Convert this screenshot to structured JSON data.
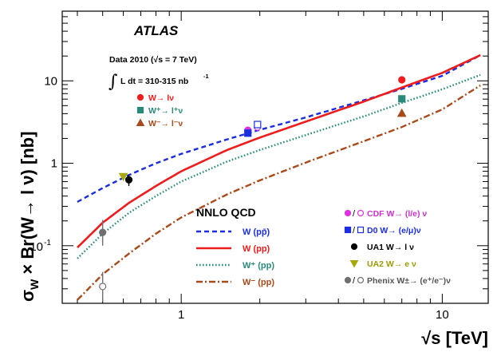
{
  "chart_data": {
    "type": "line",
    "experiment_label": "ATLAS",
    "data_label": "Data 2010 (√s = 7 TeV)",
    "lumi_integral_symbol": "∫",
    "lumi_label": "L dt = 310-315 nb",
    "lumi_superscript": "-1",
    "xlabel": "√s [TeV]",
    "ylabel": "σ_W × Br(W→ l ν) [nb]",
    "xscale": "log",
    "yscale": "log",
    "xlim": [
      0.35,
      15
    ],
    "ylim": [
      0.02,
      70
    ],
    "x_tick_labels": [
      {
        "value": 1,
        "label": "1"
      },
      {
        "value": 10,
        "label": "10"
      }
    ],
    "y_tick_labels": [
      {
        "value": 0.1,
        "label": "10",
        "sup": "-1"
      },
      {
        "value": 1,
        "label": "1",
        "sup": ""
      },
      {
        "value": 10,
        "label": "10",
        "sup": ""
      }
    ],
    "theory_title": "NNLO QCD",
    "series": [
      {
        "name": "W (pp̄)",
        "style": "dashed",
        "color": "#1a2ee0",
        "x": [
          0.4,
          0.5,
          0.63,
          0.8,
          1.0,
          1.5,
          1.96,
          3,
          5,
          7,
          10,
          14
        ],
        "y": [
          0.34,
          0.5,
          0.72,
          1.0,
          1.3,
          1.95,
          2.5,
          3.6,
          5.8,
          8.0,
          11.5,
          20.5
        ]
      },
      {
        "name": "W (pp)",
        "style": "solid",
        "color": "#ee1c1c",
        "x": [
          0.4,
          0.5,
          0.63,
          0.8,
          1.0,
          1.5,
          2.0,
          3,
          5,
          7,
          10,
          14
        ],
        "y": [
          0.095,
          0.19,
          0.33,
          0.53,
          0.8,
          1.45,
          2.05,
          3.2,
          5.6,
          8.3,
          12.5,
          20.5
        ]
      },
      {
        "name": "W⁺ (pp)",
        "style": "dotted",
        "color": "#2a8a7a",
        "x": [
          0.4,
          0.5,
          0.63,
          0.8,
          1.0,
          1.5,
          2.0,
          3,
          5,
          7,
          10,
          14
        ],
        "y": [
          0.07,
          0.14,
          0.25,
          0.4,
          0.6,
          1.05,
          1.45,
          2.2,
          3.7,
          5.4,
          7.9,
          11.8
        ]
      },
      {
        "name": "W⁻ (pp)",
        "style": "dashdot",
        "color": "#a84a1a",
        "x": [
          0.4,
          0.5,
          0.63,
          0.8,
          1.0,
          1.5,
          2.0,
          3,
          5,
          7,
          10,
          14
        ],
        "y": [
          0.022,
          0.045,
          0.08,
          0.14,
          0.22,
          0.42,
          0.62,
          1.02,
          1.85,
          2.75,
          4.5,
          8.8
        ]
      }
    ],
    "measurements": [
      {
        "group": "ATLAS",
        "name": "W→ lν",
        "marker": "circle",
        "filled": true,
        "color": "#ee1c1c",
        "x": 7,
        "y": 10.3,
        "err": 1.0
      },
      {
        "group": "ATLAS",
        "name": "W⁺→ l⁺ν",
        "marker": "square",
        "filled": true,
        "color": "#2a8a7a",
        "x": 7,
        "y": 6.05,
        "err": 0.6
      },
      {
        "group": "ATLAS",
        "name": "W⁻→ l⁻ν",
        "marker": "triangle-up",
        "filled": true,
        "color": "#a84a1a",
        "x": 7,
        "y": 4.05,
        "err": 0.4
      },
      {
        "group": "CDF",
        "name": "CDF W→ (l/e) ν",
        "marker": "circle",
        "filled": true,
        "color": "#dd33dd",
        "x": 1.8,
        "y": 2.52,
        "err": 0.12
      },
      {
        "group": "CDF",
        "name": "CDF W→ (l/e) ν",
        "marker": "circle",
        "filled": false,
        "color": "#dd33dd",
        "x": 1.96,
        "y": 2.75,
        "err": 0.12
      },
      {
        "group": "D0",
        "name": "D0 W→ (e/μ)ν",
        "marker": "square",
        "filled": true,
        "color": "#1a2ee0",
        "x": 1.8,
        "y": 2.32,
        "err": 0.12
      },
      {
        "group": "D0",
        "name": "D0 W→ (e/μ)ν",
        "marker": "square",
        "filled": false,
        "color": "#1a2ee0",
        "x": 1.96,
        "y": 2.95,
        "err": 0.12
      },
      {
        "group": "UA1",
        "name": "UA1 W→ l ν",
        "marker": "circle",
        "filled": true,
        "color": "#000000",
        "x": 0.63,
        "y": 0.63,
        "err": 0.1
      },
      {
        "group": "UA2",
        "name": "UA2 W→ e ν",
        "marker": "triangle-down",
        "filled": true,
        "color": "#a8a80a",
        "x": 0.6,
        "y": 0.69,
        "err": 0.05
      },
      {
        "group": "Phenix",
        "name": "Phenix W±→ (e⁺/e⁻)ν",
        "marker": "circle",
        "filled": true,
        "color": "#707070",
        "x": 0.5,
        "y": 0.145,
        "err_low": 0.045,
        "err_high": 0.06
      },
      {
        "group": "Phenix",
        "name": "Phenix W±→ (e⁺/e⁻)ν",
        "marker": "circle",
        "filled": false,
        "color": "#707070",
        "x": 0.5,
        "y": 0.032,
        "err_low": 0.011,
        "err_high": 0.016
      }
    ],
    "legend_atlas": [
      {
        "label": "W→ lν",
        "marker": "circle",
        "color": "#ee1c1c"
      },
      {
        "label": "W⁺→ l⁺ν",
        "marker": "square",
        "color": "#2a8a7a"
      },
      {
        "label": "W⁻→ l⁻ν",
        "marker": "triangle-up",
        "color": "#a84a1a"
      }
    ],
    "legend_theory": [
      {
        "label": "W (pp̄)",
        "style": "dashed",
        "color": "#1a2ee0"
      },
      {
        "label": "W (pp)",
        "style": "solid",
        "color": "#ee1c1c"
      },
      {
        "label": "W⁺ (pp)",
        "style": "dotted",
        "color": "#2a8a7a"
      },
      {
        "label": "W⁻ (pp)",
        "style": "dashdot",
        "color": "#a84a1a"
      }
    ],
    "legend_experiments": [
      {
        "label": "CDF W→ (l/e) ν",
        "markers": [
          "circle",
          "circle-open"
        ],
        "color": "#dd33dd",
        "text_color": "#cc33cc"
      },
      {
        "label": "D0 W→ (e/μ)ν",
        "markers": [
          "square",
          "square-open"
        ],
        "color": "#1a2ee0",
        "text_color": "#1a2ee0"
      },
      {
        "label": "UA1 W→ l ν",
        "markers": [
          "circle"
        ],
        "color": "#000000",
        "text_color": "#000000"
      },
      {
        "label": "UA2 W→ e ν",
        "markers": [
          "triangle-down"
        ],
        "color": "#a8a80a",
        "text_color": "#9a9a0a"
      },
      {
        "label": "Phenix W±→ (e⁺/e⁻)ν",
        "markers": [
          "circle",
          "circle-open"
        ],
        "color": "#707070",
        "text_color": "#555555"
      }
    ]
  }
}
